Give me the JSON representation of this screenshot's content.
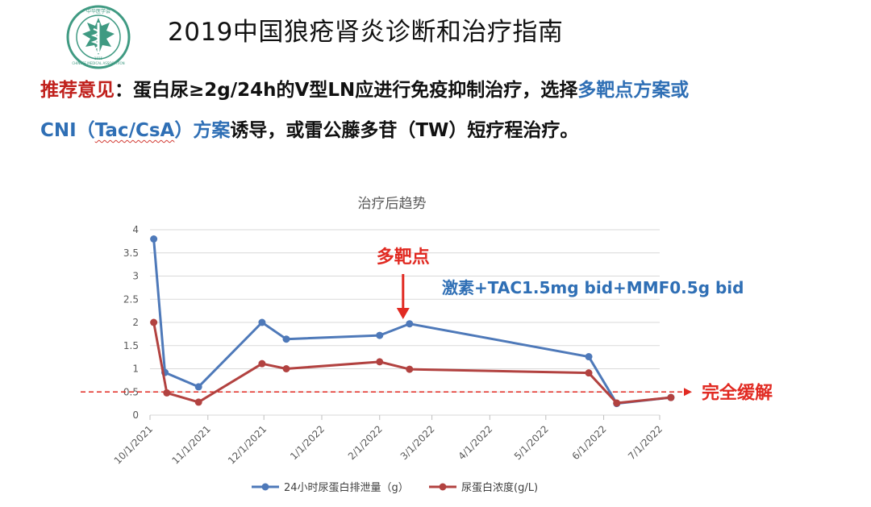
{
  "slide": {
    "title": "2019中国狼疮肾炎诊断和治疗指南",
    "logo_text": "中华医学会",
    "logo_text_en": "CHINESE MEDICAL ASSOCIATION",
    "logo_year": "1915",
    "recommendation": {
      "label": "推荐意见",
      "colon": "：",
      "part1": "蛋白尿≥2g/24h的Ⅴ型LN应进行免疫抑制治疗，选择",
      "highlight1": "多靶点方案或",
      "highlight2a": "CNI（",
      "highlight2b": "Tac/CsA",
      "highlight2c": "）方案",
      "part2": "诱导，或雷公藤多苷（TW）短疗程治疗。"
    }
  },
  "colors": {
    "series1": "#4e79b9",
    "series2": "#b24240",
    "annotation_red": "#e12a22",
    "annotation_blue": "#2f6fb5",
    "title_red": "#c0201c",
    "logo_green": "#3f9a82"
  },
  "chart_data": {
    "type": "line",
    "title": "治疗后趋势",
    "x_is_date": true,
    "xlim": [
      "2021-10-01",
      "2022-07-01"
    ],
    "ylim": [
      0,
      4
    ],
    "y_ticks": [
      "0",
      "0.5",
      "1",
      "1.5",
      "2",
      "2.5",
      "3",
      "3.5",
      "4"
    ],
    "x_ticks": [
      "10/1/2021",
      "11/1/2021",
      "12/1/2021",
      "1/1/2022",
      "2/1/2022",
      "3/1/2022",
      "4/1/2022",
      "5/1/2022",
      "6/1/2022",
      "7/1/2022"
    ],
    "grid": true,
    "legend_position": "bottom",
    "series": [
      {
        "name": "24小时尿蛋白排泄量（g）",
        "points": [
          [
            "2021-10-03",
            3.8
          ],
          [
            "2021-10-09",
            0.92
          ],
          [
            "2021-10-27",
            0.61
          ],
          [
            "2021-11-30",
            2.0
          ],
          [
            "2021-12-13",
            1.64
          ],
          [
            "2022-02-01",
            1.72
          ],
          [
            "2022-02-17",
            1.97
          ],
          [
            "2022-05-24",
            1.26
          ],
          [
            "2022-06-08",
            0.25
          ],
          [
            "2022-07-07",
            0.38
          ]
        ]
      },
      {
        "name": "尿蛋白浓度(g/L)",
        "points": [
          [
            "2021-10-03",
            2.0
          ],
          [
            "2021-10-10",
            0.48
          ],
          [
            "2021-10-27",
            0.28
          ],
          [
            "2021-11-30",
            1.11
          ],
          [
            "2021-12-13",
            1.0
          ],
          [
            "2022-02-01",
            1.15
          ],
          [
            "2022-02-17",
            0.99
          ],
          [
            "2022-05-24",
            0.91
          ],
          [
            "2022-06-08",
            0.26
          ],
          [
            "2022-07-07",
            0.38
          ]
        ]
      }
    ],
    "annotations": {
      "multi_target_label": "多靶点",
      "multi_target_date": "2022-02-17",
      "regimen": "激素+TAC1.5mg bid+MMF0.5g bid",
      "remission_label": "完全缓解",
      "remission_value": 0.5
    }
  }
}
